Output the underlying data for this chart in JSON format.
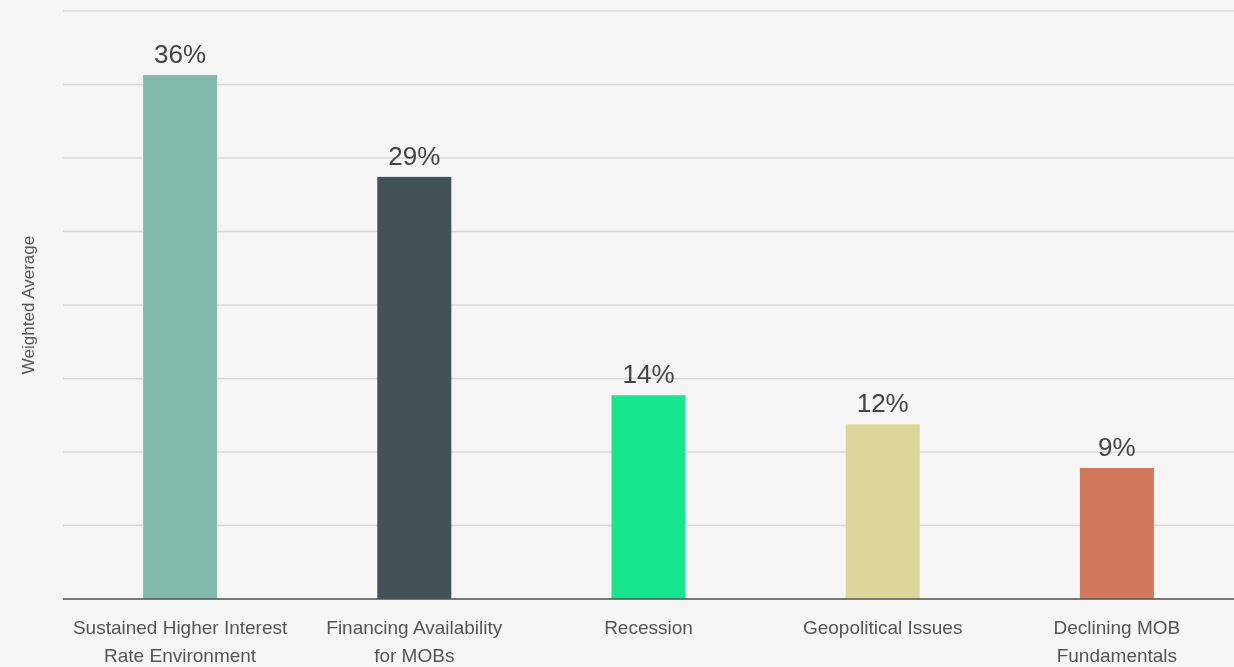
{
  "chart_data": {
    "type": "bar",
    "ylabel": "Weighted Average",
    "categories": [
      "Sustained Higher Interest Rate Environment",
      "Financing Availability for MOBs",
      "Recession",
      "Geopolitical Issues",
      "Declining MOB Fundamentals"
    ],
    "values": [
      36,
      29,
      14,
      12,
      9
    ],
    "value_labels": [
      "36%",
      "29%",
      "14%",
      "12%",
      "9%"
    ],
    "colors": [
      "#82bbad",
      "#425257",
      "#17e68f",
      "#dbd79a",
      "#d1775c"
    ],
    "grid": "y",
    "tick_labels": "x"
  }
}
